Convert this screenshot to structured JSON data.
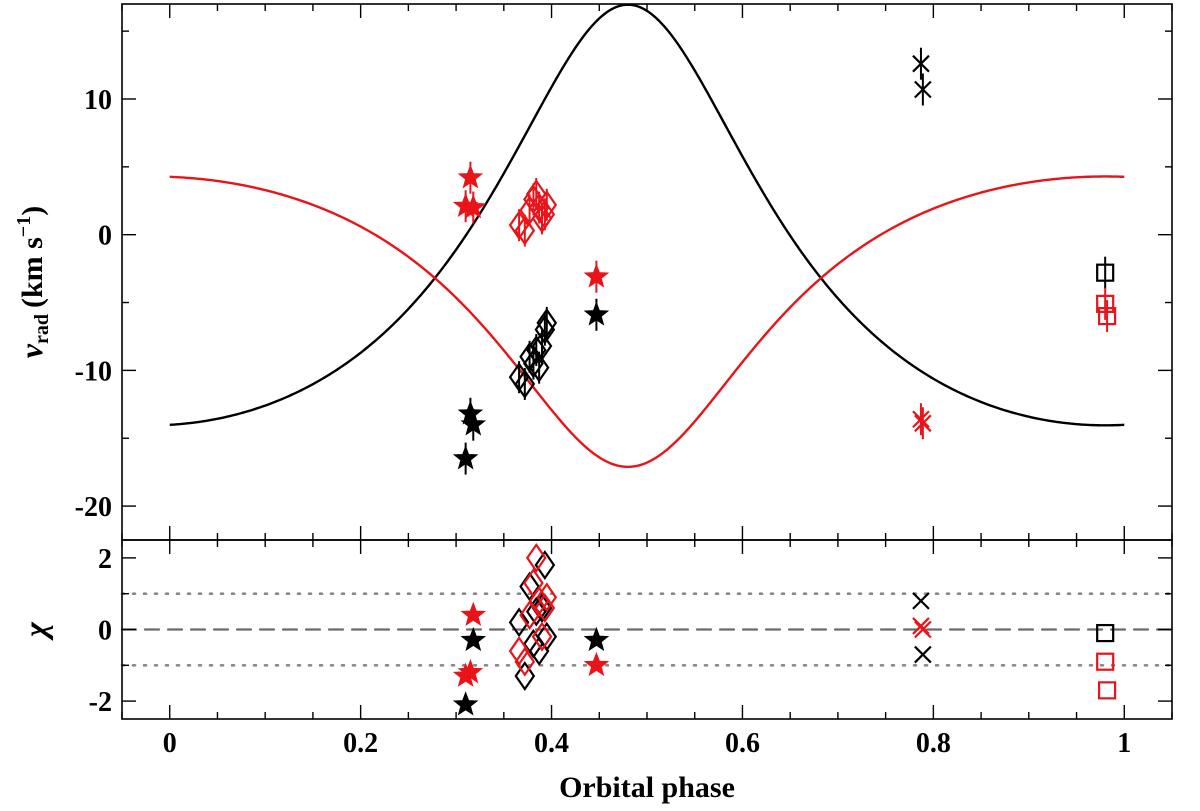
{
  "chart_data": {
    "type": "scatter",
    "xlabel": "Orbital phase",
    "xlim": [
      -0.05,
      1.05
    ],
    "x_ticks": [
      0,
      0.2,
      0.4,
      0.6,
      0.8,
      1
    ],
    "x_tick_labels": [
      "0",
      "0.2",
      "0.4",
      "0.6",
      "0.8",
      "1"
    ],
    "top_panel": {
      "ylabel_var": "v",
      "ylabel_sub": "rad",
      "ylabel_units": "(km s",
      "ylabel_exp": "−1",
      "ylabel_close": ")",
      "ylim": [
        -22.5,
        17
      ],
      "y_ticks": [
        -20,
        -10,
        0,
        10
      ],
      "y_tick_labels": [
        "-20",
        "-10",
        "0",
        "10"
      ],
      "orbit_model": {
        "primary": {
          "color": "#000000",
          "gamma": -3.2,
          "K": 15.5,
          "e": 0.3,
          "omega_deg": 0,
          "T0_phase": 0.48
        },
        "secondary": {
          "color": "#e8141a",
          "gamma": -3.2,
          "K": 10.7,
          "e": 0.3,
          "omega_deg": 180,
          "T0_phase": 0.48
        }
      },
      "series": [
        {
          "name": "primary-star",
          "color": "#000000",
          "marker": "star",
          "points": [
            [
              0.31,
              -16.5
            ],
            [
              0.315,
              -13.2
            ],
            [
              0.318,
              -14.0
            ],
            [
              0.447,
              -5.9
            ]
          ]
        },
        {
          "name": "primary-diamond",
          "color": "#000000",
          "marker": "diamond",
          "points": [
            [
              0.366,
              -10.5
            ],
            [
              0.372,
              -11.0
            ],
            [
              0.377,
              -9.0
            ],
            [
              0.381,
              -9.5
            ],
            [
              0.384,
              -8.5
            ],
            [
              0.387,
              -9.8
            ],
            [
              0.39,
              -8.2
            ],
            [
              0.393,
              -7.0
            ],
            [
              0.395,
              -6.5
            ]
          ]
        },
        {
          "name": "primary-cross",
          "color": "#000000",
          "marker": "x",
          "points": [
            [
              0.787,
              12.6
            ],
            [
              0.789,
              10.7
            ]
          ]
        },
        {
          "name": "primary-square",
          "color": "#000000",
          "marker": "square",
          "points": [
            [
              0.98,
              -2.8
            ]
          ]
        },
        {
          "name": "secondary-star",
          "color": "#e8141a",
          "marker": "star",
          "points": [
            [
              0.31,
              2.1
            ],
            [
              0.315,
              4.2
            ],
            [
              0.318,
              2.0
            ],
            [
              0.447,
              -3.1
            ]
          ]
        },
        {
          "name": "secondary-diamond",
          "color": "#e8141a",
          "marker": "diamond",
          "points": [
            [
              0.366,
              0.7
            ],
            [
              0.372,
              0.3
            ],
            [
              0.377,
              1.8
            ],
            [
              0.381,
              2.6
            ],
            [
              0.384,
              3.0
            ],
            [
              0.387,
              2.0
            ],
            [
              0.39,
              1.2
            ],
            [
              0.393,
              1.5
            ],
            [
              0.395,
              2.2
            ]
          ]
        },
        {
          "name": "secondary-cross",
          "color": "#e8141a",
          "marker": "x",
          "points": [
            [
              0.787,
              -13.6
            ],
            [
              0.789,
              -13.9
            ]
          ]
        },
        {
          "name": "secondary-square",
          "color": "#e8141a",
          "marker": "square",
          "points": [
            [
              0.98,
              -5.1
            ],
            [
              0.982,
              -6.0
            ]
          ]
        }
      ]
    },
    "bottom_panel": {
      "ylabel": "χ",
      "ylim": [
        -2.5,
        2.5
      ],
      "y_ticks": [
        -2,
        0,
        2
      ],
      "y_tick_labels": [
        "-2",
        "0",
        "2"
      ],
      "reference_lines": [
        {
          "y": 0,
          "style": "dashed"
        },
        {
          "y": 1,
          "style": "dotted"
        },
        {
          "y": -1,
          "style": "dotted"
        }
      ],
      "series": [
        {
          "name": "primary-star",
          "color": "#000000",
          "marker": "star",
          "points": [
            [
              0.31,
              -2.1
            ],
            [
              0.318,
              -0.3
            ],
            [
              0.447,
              -0.3
            ]
          ]
        },
        {
          "name": "primary-diamond",
          "color": "#000000",
          "marker": "diamond",
          "points": [
            [
              0.366,
              0.2
            ],
            [
              0.372,
              -1.3
            ],
            [
              0.377,
              1.2
            ],
            [
              0.381,
              -0.4
            ],
            [
              0.384,
              0.5
            ],
            [
              0.387,
              -0.6
            ],
            [
              0.39,
              0.6
            ],
            [
              0.393,
              1.8
            ],
            [
              0.395,
              -0.2
            ]
          ]
        },
        {
          "name": "primary-cross",
          "color": "#000000",
          "marker": "x",
          "points": [
            [
              0.787,
              0.8
            ],
            [
              0.789,
              -0.7
            ]
          ]
        },
        {
          "name": "primary-square",
          "color": "#000000",
          "marker": "square",
          "points": [
            [
              0.98,
              -0.1
            ]
          ]
        },
        {
          "name": "secondary-star",
          "color": "#e8141a",
          "marker": "star",
          "points": [
            [
              0.31,
              -1.3
            ],
            [
              0.315,
              -1.2
            ],
            [
              0.318,
              0.4
            ],
            [
              0.447,
              -1.0
            ]
          ]
        },
        {
          "name": "secondary-diamond",
          "color": "#e8141a",
          "marker": "diamond",
          "points": [
            [
              0.366,
              -0.6
            ],
            [
              0.372,
              -0.9
            ],
            [
              0.377,
              0.4
            ],
            [
              0.381,
              1.3
            ],
            [
              0.384,
              2.0
            ],
            [
              0.387,
              0.8
            ],
            [
              0.39,
              -0.2
            ],
            [
              0.393,
              0.6
            ],
            [
              0.395,
              0.9
            ]
          ]
        },
        {
          "name": "secondary-cross",
          "color": "#e8141a",
          "marker": "x",
          "points": [
            [
              0.787,
              0.1
            ],
            [
              0.789,
              0.0
            ]
          ]
        },
        {
          "name": "secondary-square",
          "color": "#e8141a",
          "marker": "square",
          "points": [
            [
              0.98,
              -0.9
            ],
            [
              0.982,
              -1.7
            ]
          ]
        }
      ]
    }
  }
}
